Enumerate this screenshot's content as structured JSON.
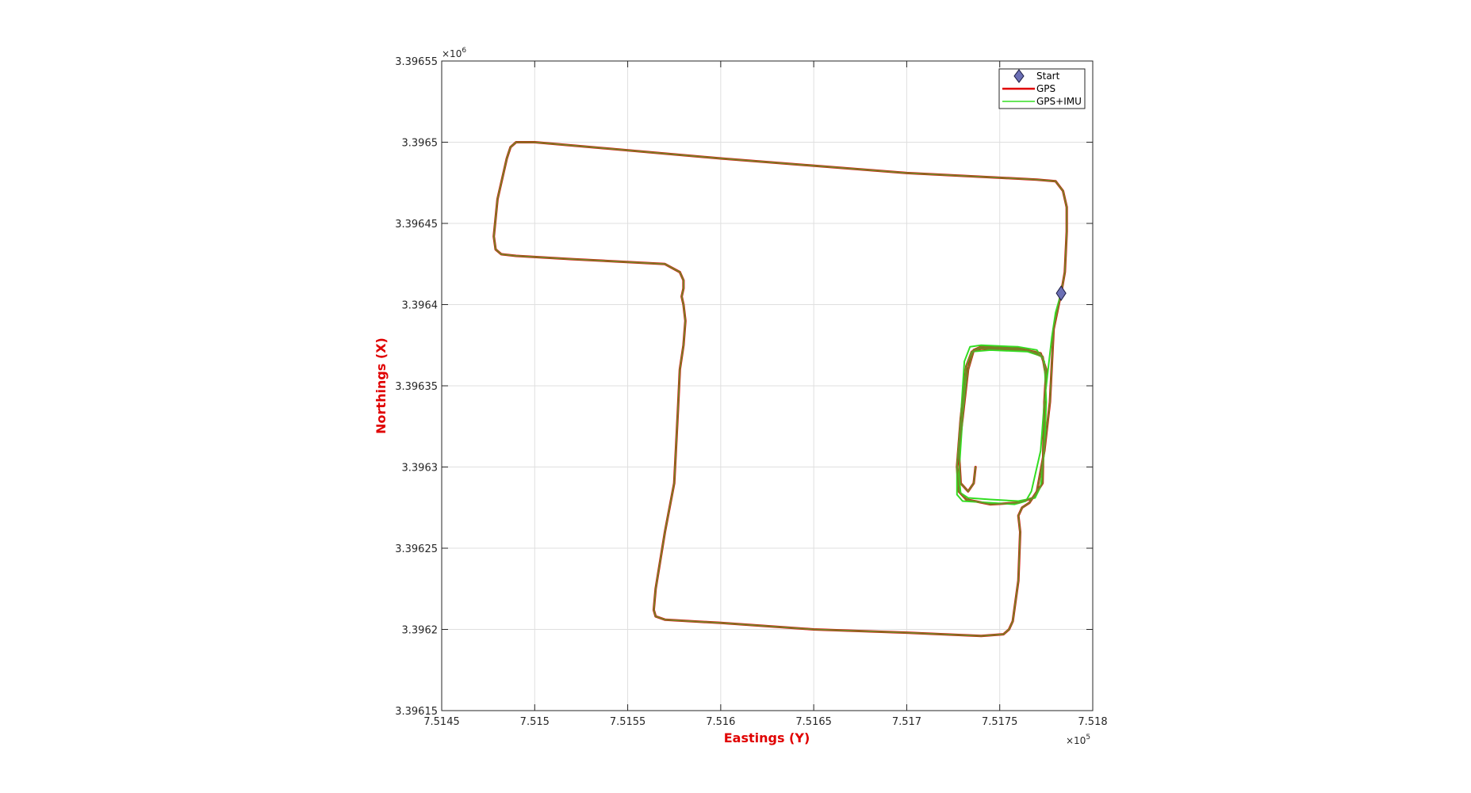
{
  "chart_data": {
    "type": "line",
    "title": "",
    "xlabel": "Eastings (Y)",
    "ylabel": "Northings (X)",
    "x_scale_label": "×10",
    "x_scale_exp": "5",
    "y_scale_label": "×10",
    "y_scale_exp": "6",
    "xlim": [
      751450,
      751800
    ],
    "ylim": [
      3396150,
      3396550
    ],
    "x_tick_values": [
      751450,
      751500,
      751550,
      751600,
      751650,
      751700,
      751750,
      751800
    ],
    "x_tick_labels": [
      "7.5145",
      "7.515",
      "7.5155",
      "7.516",
      "7.5165",
      "7.517",
      "7.5175",
      "7.518"
    ],
    "y_tick_values": [
      3396150,
      3396200,
      3396250,
      3396300,
      3396350,
      3396400,
      3396450,
      3396500,
      3396550
    ],
    "y_tick_labels": [
      "3.39615",
      "3.3962",
      "3.39625",
      "3.3963",
      "3.39635",
      "3.3964",
      "3.39645",
      "3.3965",
      "3.39655"
    ],
    "grid": true,
    "legend_position": "top-right",
    "colors": {
      "start_marker": "#6b6fb5",
      "gps": "#e00000",
      "gps_imu": "#33dd22",
      "axis_label": "#e00000"
    },
    "legend": [
      {
        "label": "Start",
        "symbol": "diamond"
      },
      {
        "label": "GPS",
        "symbol": "line"
      },
      {
        "label": "GPS+IMU",
        "symbol": "line"
      }
    ],
    "series": [
      {
        "name": "Start",
        "type": "scatter",
        "points": [
          [
            751783,
            3396407
          ]
        ]
      },
      {
        "name": "GPS",
        "type": "line",
        "points": [
          [
            751783,
            3396407
          ],
          [
            751785,
            3396420
          ],
          [
            751786,
            3396445
          ],
          [
            751786,
            3396460
          ],
          [
            751784,
            3396470
          ],
          [
            751780,
            3396476
          ],
          [
            751770,
            3396477
          ],
          [
            751700,
            3396481
          ],
          [
            751600,
            3396490
          ],
          [
            751500,
            3396500
          ],
          [
            751490,
            3396500
          ],
          [
            751487,
            3396497
          ],
          [
            751485,
            3396490
          ],
          [
            751480,
            3396465
          ],
          [
            751478,
            3396442
          ],
          [
            751479,
            3396434
          ],
          [
            751482,
            3396431
          ],
          [
            751490,
            3396430
          ],
          [
            751520,
            3396428
          ],
          [
            751570,
            3396425
          ],
          [
            751578,
            3396420
          ],
          [
            751580,
            3396415
          ],
          [
            751580,
            3396410
          ],
          [
            751579,
            3396405
          ],
          [
            751580,
            3396400
          ],
          [
            751581,
            3396390
          ],
          [
            751580,
            3396375
          ],
          [
            751578,
            3396360
          ],
          [
            751577,
            3396335
          ],
          [
            751575,
            3396290
          ],
          [
            751570,
            3396260
          ],
          [
            751565,
            3396225
          ],
          [
            751564,
            3396212
          ],
          [
            751565,
            3396208
          ],
          [
            751570,
            3396206
          ],
          [
            751600,
            3396204
          ],
          [
            751650,
            3396200
          ],
          [
            751700,
            3396198
          ],
          [
            751740,
            3396196
          ],
          [
            751752,
            3396197
          ],
          [
            751755,
            3396200
          ],
          [
            751757,
            3396205
          ],
          [
            751760,
            3396230
          ],
          [
            751761,
            3396260
          ],
          [
            751760,
            3396270
          ],
          [
            751762,
            3396275
          ],
          [
            751766,
            3396278
          ],
          [
            751770,
            3396285
          ],
          [
            751774,
            3396310
          ],
          [
            751777,
            3396340
          ],
          [
            751779,
            3396385
          ],
          [
            751783,
            3396407
          ]
        ]
      },
      {
        "name": "GPS+IMU",
        "type": "line",
        "points": [
          [
            751783,
            3396407
          ],
          [
            751780,
            3396395
          ],
          [
            751778,
            3396380
          ],
          [
            751776,
            3396360
          ],
          [
            751774,
            3396340
          ],
          [
            751772,
            3396310
          ],
          [
            751767,
            3396285
          ],
          [
            751764,
            3396279
          ],
          [
            751758,
            3396277
          ],
          [
            751745,
            3396278
          ],
          [
            751730,
            3396279
          ],
          [
            751727,
            3396283
          ],
          [
            751727,
            3396300
          ],
          [
            751729,
            3396330
          ],
          [
            751731,
            3396365
          ],
          [
            751734,
            3396374
          ],
          [
            751740,
            3396375
          ],
          [
            751760,
            3396374
          ],
          [
            751770,
            3396372
          ],
          [
            751774,
            3396365
          ],
          [
            751775,
            3396340
          ],
          [
            751774,
            3396310
          ],
          [
            751772,
            3396288
          ],
          [
            751769,
            3396281
          ],
          [
            751760,
            3396279
          ],
          [
            751745,
            3396280
          ],
          [
            751733,
            3396281
          ],
          [
            751729,
            3396284
          ],
          [
            751728,
            3396295
          ],
          [
            751730,
            3396330
          ],
          [
            751732,
            3396362
          ],
          [
            751735,
            3396371
          ],
          [
            751745,
            3396372
          ],
          [
            751765,
            3396371
          ],
          [
            751773,
            3396368
          ],
          [
            751775,
            3396355
          ]
        ]
      },
      {
        "name": "GPS",
        "type": "line",
        "points": [
          [
            751775,
            3396355
          ],
          [
            751773,
            3396368
          ],
          [
            751765,
            3396372
          ],
          [
            751740,
            3396373
          ],
          [
            751735,
            3396371
          ],
          [
            751732,
            3396362
          ],
          [
            751729,
            3396330
          ],
          [
            751727,
            3396300
          ],
          [
            751728,
            3396285
          ],
          [
            751732,
            3396280
          ],
          [
            751745,
            3396277
          ],
          [
            751760,
            3396278
          ],
          [
            751768,
            3396281
          ],
          [
            751773,
            3396290
          ],
          [
            751774,
            3396340
          ],
          [
            751775,
            3396360
          ],
          [
            751772,
            3396370
          ],
          [
            751760,
            3396373
          ],
          [
            751740,
            3396374
          ],
          [
            751736,
            3396372
          ],
          [
            751733,
            3396360
          ],
          [
            751730,
            3396330
          ],
          [
            751728,
            3396310
          ],
          [
            751729,
            3396290
          ],
          [
            751733,
            3396285
          ],
          [
            751736,
            3396290
          ],
          [
            751737,
            3396300
          ]
        ]
      }
    ]
  }
}
